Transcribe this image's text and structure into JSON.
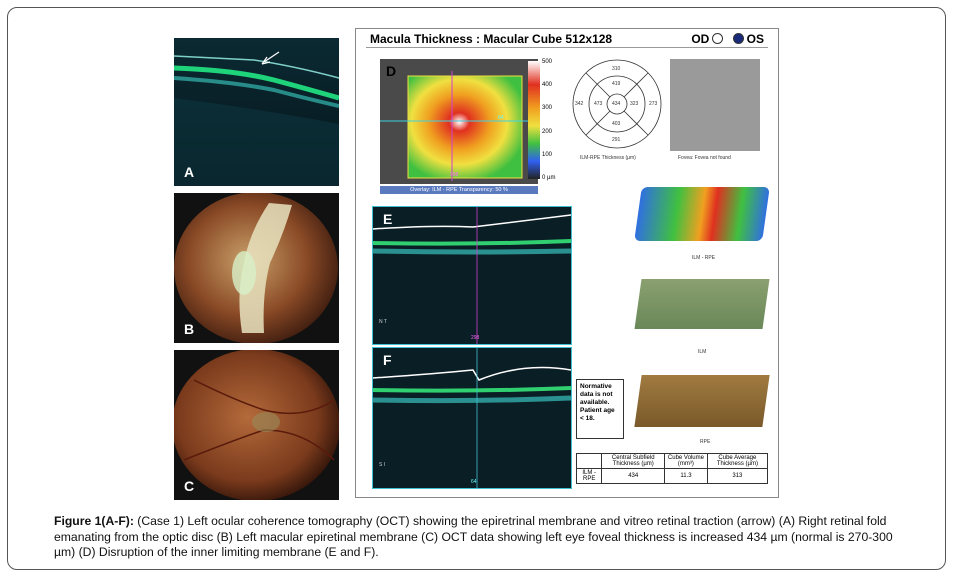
{
  "panels": {
    "A": "A",
    "B": "B",
    "C": "C",
    "D": "D",
    "E": "E",
    "F": "F"
  },
  "report": {
    "title": "Macula Thickness : Macular Cube 512x128",
    "od": "OD",
    "os": "OS",
    "scale": [
      "500",
      "400",
      "300",
      "200",
      "100",
      "0 µm"
    ],
    "overlay": "Overlay: ILM - RPE  Transparency: 50 %",
    "slice_d": "64",
    "slice_d2": "298",
    "grid": {
      "top": "310",
      "left": "342",
      "right": "273",
      "inner_top": "419",
      "inner_left": "473",
      "center": "434",
      "inner_right": "323",
      "inner_bottom": "403",
      "bottom": "291"
    },
    "grid_caption": "ILM-RPE Thickness (µm)",
    "fovea_caption": "Fovea: Fovea not found",
    "surface_labels": [
      "ILM - RPE",
      "ILM",
      "RPE"
    ],
    "e_slice": "298",
    "e_nt": "N  T",
    "f_slice": "64",
    "f_si": "S I",
    "normative": "Normative data is not available. Patient age < 18.",
    "stats_headers": [
      "",
      "Central Subfield Thickness (µm)",
      "Cube Volume (mm³)",
      "Cube Average Thickness (µm)"
    ],
    "stats_row": [
      "ILM - RPE",
      "434",
      "11.3",
      "313"
    ]
  },
  "caption": {
    "label": "Figure 1(A-F):",
    "text": " (Case 1) Left ocular coherence tomography (OCT) showing the epiretrinal membrane and vitreo retinal traction (arrow) (A) Right retinal fold emanating from the optic disc (B) Left macular epiretinal membrane (C) OCT data showing left eye foveal thickness is increased 434 µm (normal is 270-300 µm) (D) Disruption of the inner limiting membrane (E and F)."
  }
}
